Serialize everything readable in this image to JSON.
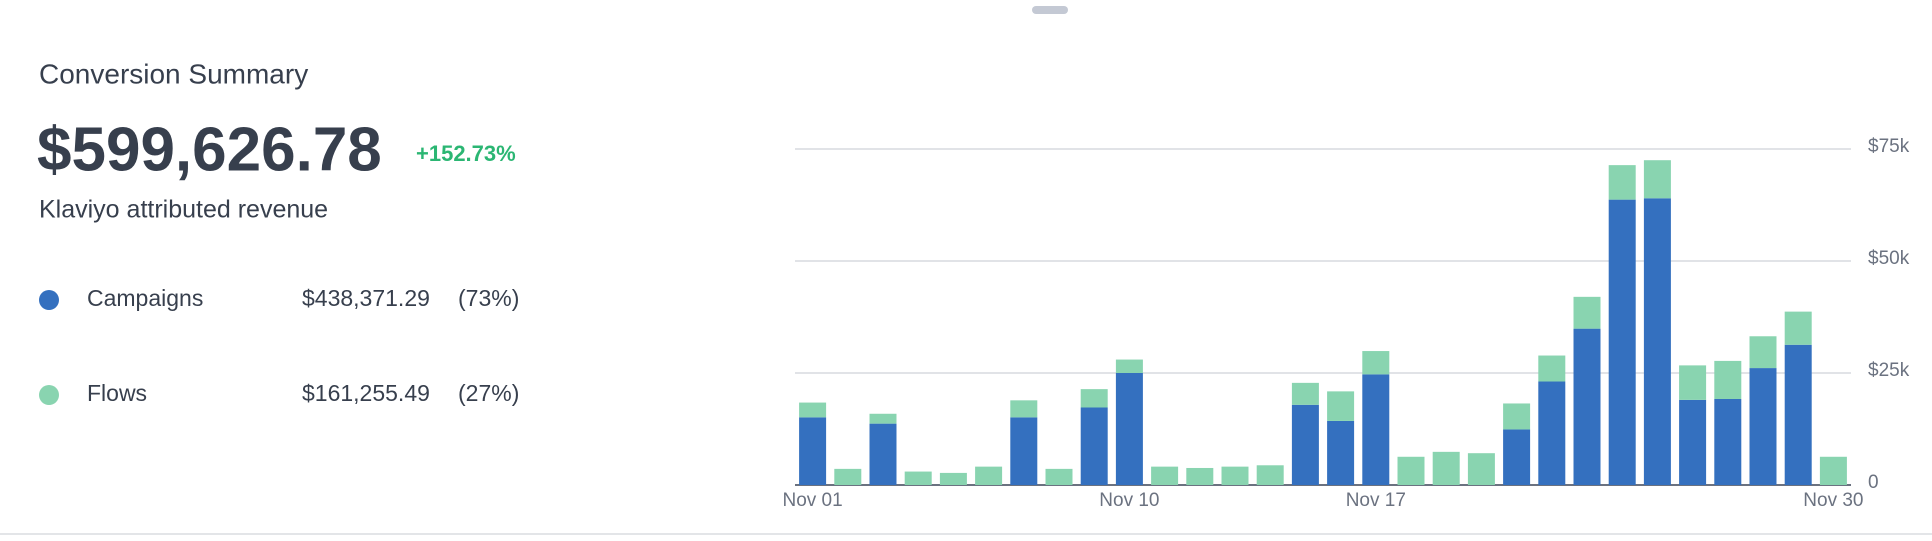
{
  "summary": {
    "title": "Conversion Summary",
    "total": "$599,626.78",
    "change": "+152.73%",
    "subtitle": "Klaviyo attributed revenue",
    "breakdown": [
      {
        "amount": "$438,371.29",
        "share": "(73%)"
      },
      {
        "amount": "$161,255.49",
        "share": "(27%)"
      }
    ]
  },
  "chart_data": {
    "type": "stacked-bar",
    "categories": [
      "Nov 01",
      null,
      null,
      null,
      null,
      null,
      null,
      null,
      null,
      "Nov 10",
      null,
      null,
      null,
      null,
      null,
      null,
      "Nov 17",
      null,
      null,
      null,
      null,
      null,
      null,
      null,
      null,
      null,
      null,
      null,
      null,
      "Nov 30"
    ],
    "series": [
      {
        "name": "Campaigns",
        "color": "#3470bf",
        "values": [
          15100,
          0,
          13700,
          0,
          0,
          0,
          15100,
          0,
          17300,
          25000,
          0,
          0,
          0,
          0,
          17900,
          14300,
          24700,
          0,
          0,
          0,
          12400,
          23100,
          34900,
          63700,
          64000,
          19000,
          19200,
          26100,
          31300,
          0
        ]
      },
      {
        "name": "Flows",
        "color": "#89d4b0",
        "values": [
          3300,
          3600,
          2200,
          3000,
          2700,
          4100,
          3800,
          3600,
          4100,
          3000,
          4100,
          3800,
          4100,
          4400,
          4900,
          6600,
          5200,
          6300,
          7400,
          7100,
          5800,
          5800,
          7100,
          7700,
          8500,
          7700,
          8500,
          7100,
          7400,
          6300
        ]
      }
    ],
    "ylim": [
      0,
      75000
    ],
    "yticks": [
      0,
      {
        "value": 25000,
        "label": "$25k"
      },
      {
        "value": 50000,
        "label": "$50k"
      },
      {
        "value": 75000,
        "label": "$75k"
      }
    ],
    "grid": true
  }
}
